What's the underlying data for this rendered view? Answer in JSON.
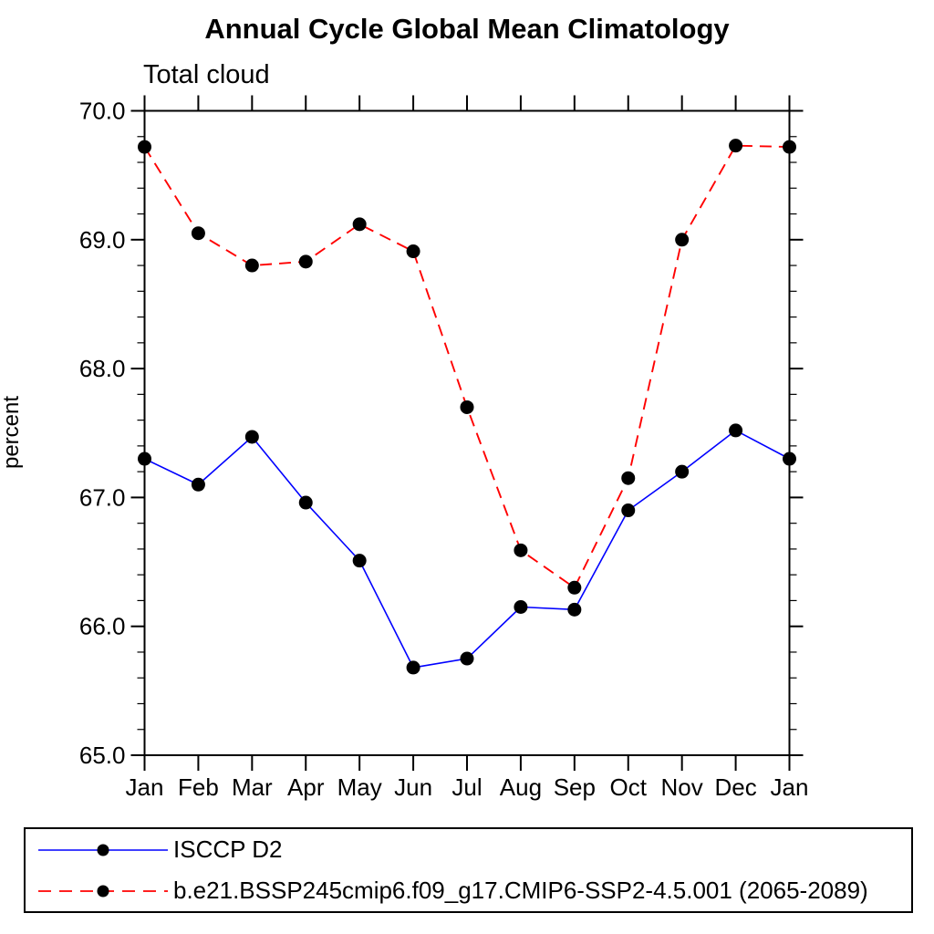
{
  "title": "Annual Cycle Global Mean Climatology",
  "subtitle": "Total cloud",
  "ylabel": "percent",
  "chart_data": {
    "type": "line",
    "categories": [
      "Jan",
      "Feb",
      "Mar",
      "Apr",
      "May",
      "Jun",
      "Jul",
      "Aug",
      "Sep",
      "Oct",
      "Nov",
      "Dec",
      "Jan"
    ],
    "ylim": [
      65.0,
      70.0
    ],
    "ytick_major_interval": 1.0,
    "ytick_minor_interval": 0.2,
    "ytick_labels": [
      "65.0",
      "66.0",
      "67.0",
      "68.0",
      "69.0",
      "70.0"
    ],
    "grid": false,
    "legend_position": "bottom-box",
    "marker_color": "#000000",
    "series": [
      {
        "name": "ISCCP D2",
        "color": "#0000ff",
        "line_style": "solid",
        "marker": "filled-circle",
        "values": [
          67.3,
          67.1,
          67.47,
          66.96,
          66.51,
          65.68,
          65.75,
          66.15,
          66.13,
          66.9,
          67.2,
          67.52,
          67.3
        ]
      },
      {
        "name": "b.e21.BSSP245cmip6.f09_g17.CMIP6-SSP2-4.5.001 (2065-2089)",
        "color": "#ff0000",
        "line_style": "dashed",
        "marker": "filled-circle",
        "values": [
          69.72,
          69.05,
          68.8,
          68.83,
          69.12,
          68.91,
          67.7,
          66.59,
          66.3,
          67.15,
          69.0,
          69.73,
          69.72
        ]
      }
    ]
  }
}
